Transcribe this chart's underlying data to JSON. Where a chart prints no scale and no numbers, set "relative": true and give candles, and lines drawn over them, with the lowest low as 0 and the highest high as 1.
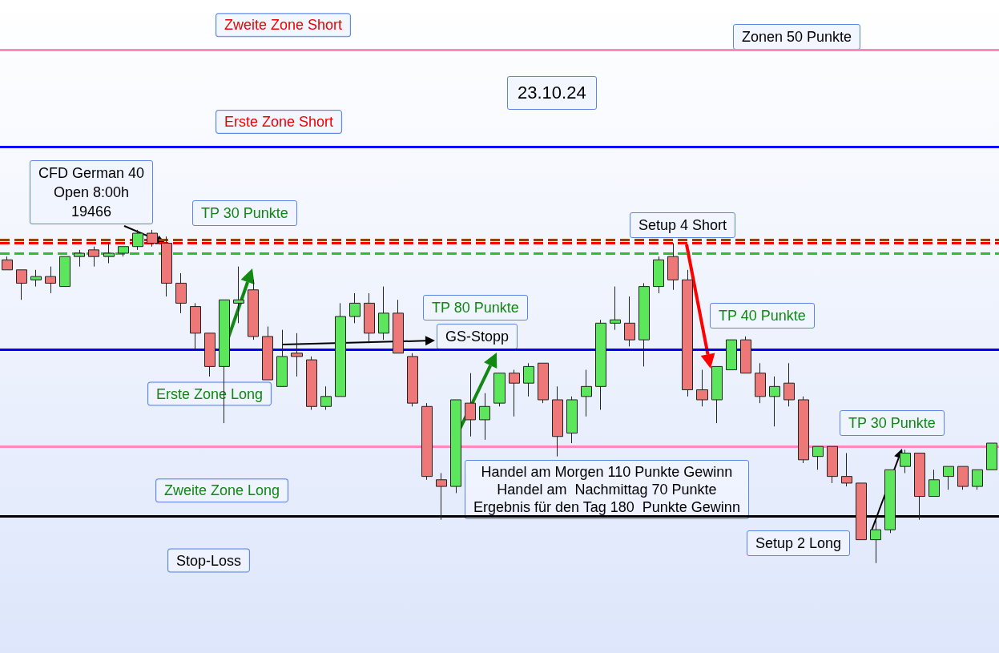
{
  "chart_data": {
    "type": "candlestick",
    "relative": true,
    "categories": [
      null,
      null,
      null,
      null,
      null,
      null,
      null,
      null,
      null,
      null,
      null,
      null,
      null,
      null,
      null,
      null,
      null,
      null,
      null,
      null,
      null,
      null,
      null,
      null,
      null,
      null,
      null,
      null,
      null,
      null,
      null,
      null,
      null,
      null,
      null,
      null,
      null,
      null,
      null,
      null,
      null,
      null,
      null,
      null,
      null,
      null,
      null,
      null,
      null,
      null,
      null,
      null,
      null,
      null,
      null,
      null,
      null,
      null,
      null,
      null,
      null,
      null,
      null,
      null,
      null,
      null,
      null,
      null,
      null
    ],
    "ohlc": [
      [
        0.91,
        0.92,
        0.88,
        0.88
      ],
      [
        0.88,
        0.88,
        0.79,
        0.84
      ],
      [
        0.85,
        0.88,
        0.83,
        0.86
      ],
      [
        0.86,
        0.89,
        0.81,
        0.84
      ],
      [
        0.83,
        0.92,
        0.83,
        0.92
      ],
      [
        0.92,
        0.94,
        0.89,
        0.93
      ],
      [
        0.94,
        0.95,
        0.89,
        0.92
      ],
      [
        0.92,
        0.96,
        0.9,
        0.93
      ],
      [
        0.93,
        0.95,
        0.92,
        0.95
      ],
      [
        0.95,
        1,
        0.94,
        0.99
      ],
      [
        0.99,
        1,
        0.95,
        0.96
      ],
      [
        0.96,
        0.98,
        0.8,
        0.84
      ],
      [
        0.84,
        0.87,
        0.75,
        0.78
      ],
      [
        0.77,
        0.78,
        0.64,
        0.69
      ],
      [
        0.69,
        0.69,
        0.56,
        0.59
      ],
      [
        0.59,
        0.79,
        0.42,
        0.79
      ],
      [
        0.78,
        0.89,
        0.72,
        0.79
      ],
      [
        0.82,
        0.85,
        0.67,
        0.68
      ],
      [
        0.68,
        0.71,
        0.55,
        0.55
      ],
      [
        0.53,
        0.7,
        0.53,
        0.62
      ],
      [
        0.63,
        0.69,
        0.56,
        0.62
      ],
      [
        0.61,
        0.62,
        0.46,
        0.47
      ],
      [
        0.47,
        0.53,
        0.46,
        0.5
      ],
      [
        0.5,
        0.78,
        0.5,
        0.74
      ],
      [
        0.74,
        0.81,
        0.72,
        0.78
      ],
      [
        0.78,
        0.81,
        0.66,
        0.69
      ],
      [
        0.69,
        0.83,
        0.67,
        0.75
      ],
      [
        0.75,
        0.79,
        0.63,
        0.63
      ],
      [
        0.62,
        0.63,
        0.47,
        0.48
      ],
      [
        0.47,
        0.48,
        0.25,
        0.26
      ],
      [
        0.25,
        0.27,
        0.13,
        0.23
      ],
      [
        0.23,
        0.49,
        0.21,
        0.49
      ],
      [
        0.48,
        0.57,
        0.38,
        0.43
      ],
      [
        0.43,
        0.51,
        0.37,
        0.47
      ],
      [
        0.48,
        0.57,
        0.47,
        0.57
      ],
      [
        0.57,
        0.58,
        0.44,
        0.54
      ],
      [
        0.54,
        0.6,
        0.5,
        0.59
      ],
      [
        0.6,
        0.6,
        0.48,
        0.49
      ],
      [
        0.49,
        0.53,
        0.32,
        0.38
      ],
      [
        0.39,
        0.5,
        0.36,
        0.49
      ],
      [
        0.5,
        0.58,
        0.44,
        0.53
      ],
      [
        0.53,
        0.73,
        0.46,
        0.72
      ],
      [
        0.72,
        0.83,
        0.7,
        0.73
      ],
      [
        0.72,
        0.8,
        0.65,
        0.67
      ],
      [
        0.67,
        0.84,
        0.59,
        0.83
      ],
      [
        0.83,
        0.92,
        0.81,
        0.91
      ],
      [
        0.92,
        0.96,
        0.82,
        0.85
      ],
      [
        0.85,
        0.88,
        0.5,
        0.52
      ],
      [
        0.52,
        0.58,
        0.47,
        0.49
      ],
      [
        0.49,
        0.59,
        0.42,
        0.59
      ],
      [
        0.58,
        0.67,
        0.58,
        0.67
      ],
      [
        0.67,
        0.68,
        0.57,
        0.57
      ],
      [
        0.57,
        0.6,
        0.48,
        0.5
      ],
      [
        0.5,
        0.56,
        0.41,
        0.53
      ],
      [
        0.54,
        0.6,
        0.47,
        0.49
      ],
      [
        0.49,
        0.5,
        0.3,
        0.31
      ],
      [
        0.32,
        0.35,
        0.28,
        0.35
      ],
      [
        0.35,
        0.35,
        0.24,
        0.26
      ],
      [
        0.26,
        0.33,
        0.23,
        0.24
      ],
      [
        0.24,
        0.24,
        0.07,
        0.07
      ],
      [
        0.07,
        0.14,
        0,
        0.1
      ],
      [
        0.1,
        0.28,
        0.09,
        0.28
      ],
      [
        0.29,
        0.34,
        0.27,
        0.33
      ],
      [
        0.33,
        0.33,
        0.13,
        0.2
      ],
      [
        0.2,
        0.28,
        0.2,
        0.25
      ],
      [
        0.26,
        0.29,
        0.22,
        0.29
      ],
      [
        0.29,
        0.29,
        0.22,
        0.23
      ],
      [
        0.23,
        0.28,
        0.22,
        0.28
      ],
      [
        0.28,
        0.36,
        0.28,
        0.36
      ]
    ],
    "ref_lines": [
      {
        "axis": "y",
        "value": 1.54,
        "label": "Zweite Zone Short",
        "color": "#ff88bb"
      },
      {
        "axis": "y",
        "value": 1.25,
        "label": "Erste Zone Short",
        "color": "#0000ff"
      },
      {
        "axis": "y",
        "value": 0.97,
        "color": "#8b4513",
        "line_style": "dashed"
      },
      {
        "axis": "y",
        "value": 0.96,
        "color": "#ff0000",
        "line_style": "dashed"
      },
      {
        "axis": "y",
        "value": 0.93,
        "color": "#33bb33",
        "line_style": "dashed"
      },
      {
        "axis": "y",
        "value": 0.64,
        "label": "Erste Zone Long",
        "color": "#0000ff"
      },
      {
        "axis": "y",
        "value": 0.35,
        "label": "Zweite Zone Long",
        "color": "#ff88bb"
      },
      {
        "axis": "y",
        "value": 0.14,
        "label": "Stop-Loss",
        "color": "#000000"
      }
    ],
    "annotations": [
      "CFD German 40\nOpen 8:00h\n19466",
      "TP 30 Punkte",
      "23.10.24",
      "Zonen 50 Punkte",
      "Setup 4 Short",
      "TP 80 Punkte",
      "TP 40 Punkte",
      "GS-Stopp",
      "Handel am Morgen 110 Punkte Gewinn\nHandel am  Nachmittag 70 Punkte\nErgebnis für den Tag 180  Punkte Gewinn",
      "TP 30 Punkte",
      "Setup 2 Long"
    ]
  }
}
